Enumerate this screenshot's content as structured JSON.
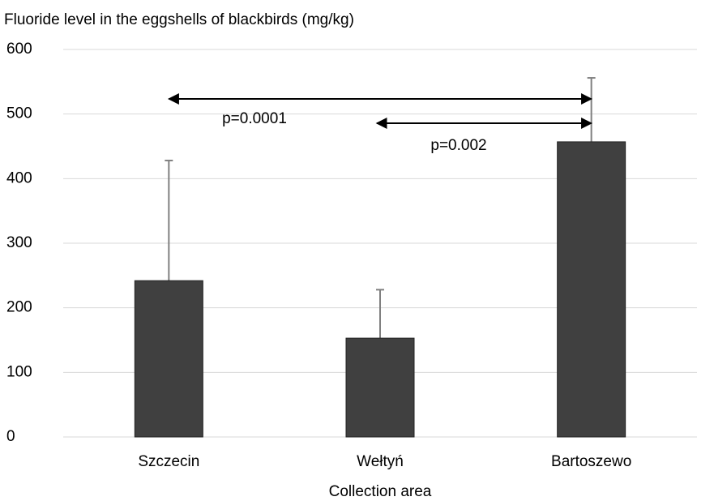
{
  "chart_data": {
    "type": "bar",
    "title": "Fluoride level in the eggshells of blackbirds (mg/kg)",
    "x_label": "Collection area",
    "categories": [
      "Szczecin",
      "Wełtyń",
      "Bartoszewo"
    ],
    "values": [
      242,
      153,
      457
    ],
    "errors": [
      186,
      75,
      99
    ],
    "color": "#404040",
    "ylim": [
      0,
      600
    ],
    "yticks": [
      0,
      100,
      200,
      300,
      400,
      500,
      600
    ],
    "grid": true,
    "annotations": [
      "p=0.0001",
      "p=0.002"
    ]
  }
}
